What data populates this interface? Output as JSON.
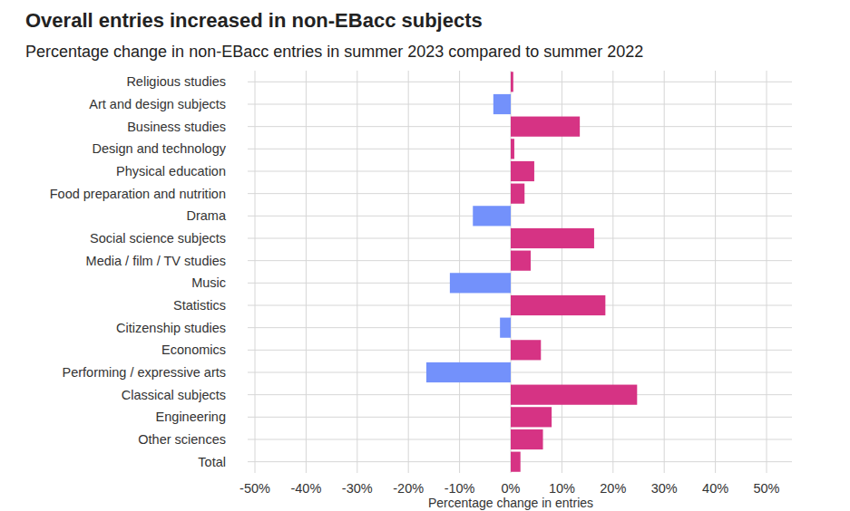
{
  "chart_data": {
    "type": "bar",
    "orientation": "horizontal",
    "title": "Overall entries increased in non-EBacc subjects",
    "subtitle": "Percentage change in non-EBacc entries in summer 2023 compared to summer 2022",
    "x_label": "Percentage change in entries",
    "categories": [
      "Religious studies",
      "Art and design subjects",
      "Business studies",
      "Design and technology",
      "Physical education",
      "Food preparation and nutrition",
      "Drama",
      "Social science subjects",
      "Media / film / TV studies",
      "Music",
      "Statistics",
      "Citizenship studies",
      "Economics",
      "Performing / expressive arts",
      "Classical subjects",
      "Engineering",
      "Other sciences",
      "Total"
    ],
    "values": [
      0.5,
      -3.4,
      13.5,
      0.7,
      4.6,
      2.7,
      -7.4,
      16.3,
      3.9,
      -11.9,
      18.5,
      -2.1,
      5.9,
      -16.5,
      24.7,
      8.0,
      6.3,
      1.9
    ],
    "colors": [
      "#d63384",
      "#7391fb",
      "#d63384",
      "#d63384",
      "#d63384",
      "#d63384",
      "#7391fb",
      "#d63384",
      "#d63384",
      "#7391fb",
      "#d63384",
      "#7391fb",
      "#d63384",
      "#7391fb",
      "#d63384",
      "#d63384",
      "#d63384",
      "#d63384"
    ],
    "xlim": [
      -50,
      50
    ],
    "xticks": [
      {
        "value": -50,
        "label": "-50%"
      },
      {
        "value": -40,
        "label": "-40%"
      },
      {
        "value": -30,
        "label": "-30%"
      },
      {
        "value": -20,
        "label": "-20%"
      },
      {
        "value": -10,
        "label": "-10%"
      },
      {
        "value": 0,
        "label": "0%"
      },
      {
        "value": 10,
        "label": "10%"
      },
      {
        "value": 20,
        "label": "20%"
      },
      {
        "value": 30,
        "label": "30%"
      },
      {
        "value": 40,
        "label": "40%"
      },
      {
        "value": 50,
        "label": "50%"
      }
    ],
    "grid": true
  }
}
